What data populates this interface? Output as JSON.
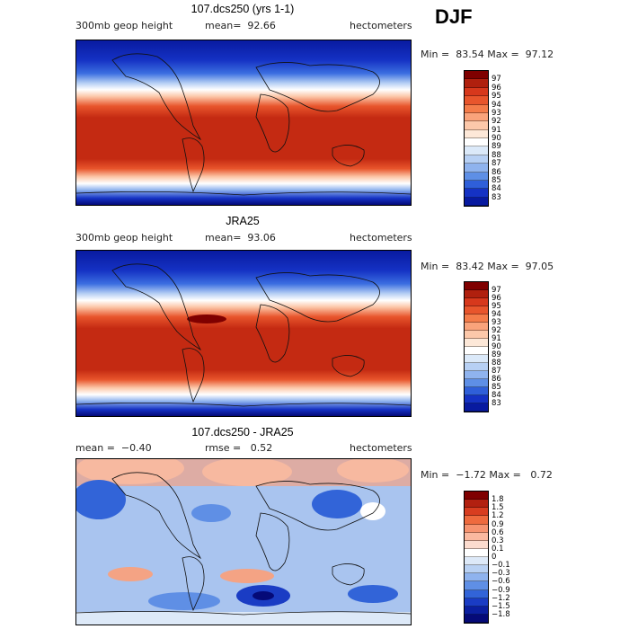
{
  "season": "DJF",
  "panels": [
    {
      "title": "107.dcs250 (yrs 1-1)",
      "variable": "300mb geop height",
      "mean_text": "mean=  92.66",
      "units": "hectometers",
      "minmax_text": "Min =  83.54 Max =  97.12",
      "colorbar_labels": [
        "97",
        "96",
        "95",
        "94",
        "93",
        "92",
        "91",
        "90",
        "89",
        "88",
        "87",
        "86",
        "85",
        "84",
        "83"
      ]
    },
    {
      "title": "JRA25",
      "variable": "300mb geop height",
      "mean_text": "mean=  93.06",
      "units": "hectometers",
      "minmax_text": "Min =  83.42 Max =  97.05",
      "colorbar_labels": [
        "97",
        "96",
        "95",
        "94",
        "93",
        "92",
        "91",
        "90",
        "89",
        "88",
        "87",
        "86",
        "85",
        "84",
        "83"
      ]
    },
    {
      "title": "107.dcs250 - JRA25",
      "mean_text": "mean =  −0.40",
      "rmse_text": "rmse =   0.52",
      "units": "hectometers",
      "minmax_text": "Min =  −1.72 Max =   0.72",
      "colorbar_labels": [
        "1.8",
        "1.5",
        "1.2",
        "0.9",
        "0.6",
        "0.3",
        "0.1",
        "0",
        "−0.1",
        "−0.3",
        "−0.6",
        "−0.9",
        "−1.2",
        "−1.5",
        "−1.8"
      ]
    }
  ],
  "colors": {
    "abs_scale": [
      "#7f0000",
      "#b0200e",
      "#d7381c",
      "#e8552c",
      "#f47c4a",
      "#f9a37b",
      "#fcc8aa",
      "#fde8d8",
      "#ffffff",
      "#dbe9f9",
      "#b7d0f4",
      "#8fb3ee",
      "#5e8fe6",
      "#2f5fd9",
      "#1532c4",
      "#081aa0",
      "#050a78"
    ],
    "diff_scale": [
      "#7f0000",
      "#b22010",
      "#d83d20",
      "#ee6a3e",
      "#f69370",
      "#fab9a0",
      "#fcdccf",
      "#ffffff",
      "#dde9f8",
      "#b9d1f3",
      "#8fb3ee",
      "#5f8fe5",
      "#3264d8",
      "#1a3cc4",
      "#0b1fa0",
      "#050a78"
    ],
    "ocean_positive": "#f4a384",
    "ocean_negative": "#a9c4ef"
  }
}
